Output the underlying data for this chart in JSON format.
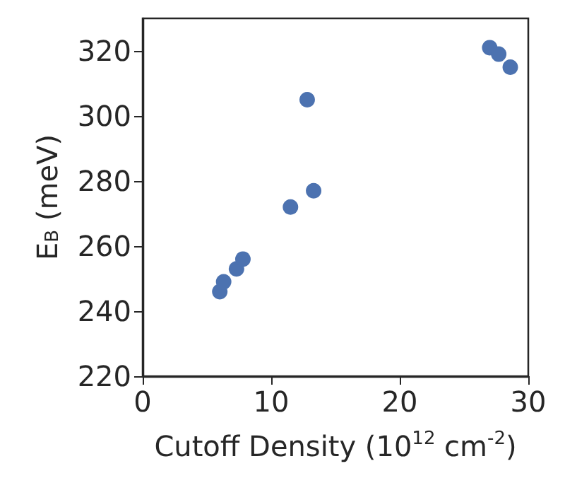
{
  "chart_data": {
    "type": "scatter",
    "xlabel": "Cutoff Density (10$^{12}$ cm$^{-2}$)",
    "ylabel": "E$_{B}$ (meV)",
    "x": [
      6.0,
      6.3,
      7.3,
      7.8,
      11.5,
      13.3,
      12.8,
      27.0,
      27.7,
      28.6
    ],
    "series": [
      {
        "color": "#4c72b0",
        "values": [
          246,
          249,
          253,
          256,
          272,
          277,
          305,
          321,
          319,
          315
        ]
      }
    ],
    "xlim": [
      0,
      30
    ],
    "xticks": [
      0,
      10,
      20,
      30
    ],
    "ylim": [
      220,
      330
    ],
    "yticks": [
      220,
      240,
      260,
      280,
      300,
      320
    ],
    "marker": "circle",
    "grid": false
  }
}
